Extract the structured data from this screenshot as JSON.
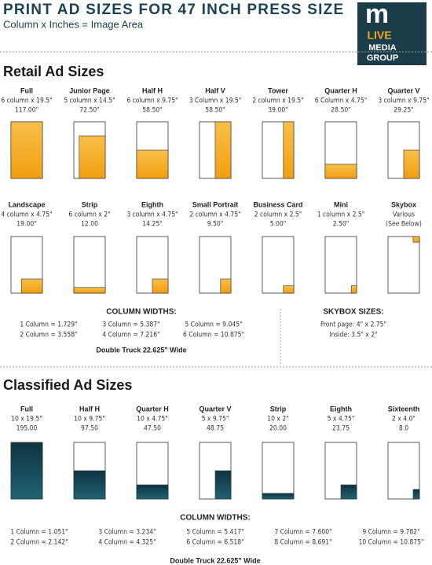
{
  "header": {
    "title": "PRINT AD SIZES FOR 47 INCH PRESS SIZE",
    "subtitle": "Column x Inches = Image Area",
    "logo": [
      "m",
      "LIVE",
      "MEDIA",
      "GROUP"
    ]
  },
  "retail": {
    "title": "Retail Ad Sizes",
    "ads": [
      {
        "name": "Full",
        "dims": "6 column x 19.5\"",
        "area": "117.00\""
      },
      {
        "name": "Junior Page",
        "dims": "5 column x 14.5\"",
        "area": "72.50\""
      },
      {
        "name": "Half H",
        "dims": "6 column x 9.75\"",
        "area": "58.50\""
      },
      {
        "name": "Half V",
        "dims": "3 Column x 19.5\"",
        "area": "58.50\""
      },
      {
        "name": "Tower",
        "dims": "2 column x 19.5\"",
        "area": "39.00\""
      },
      {
        "name": "Quarter H",
        "dims": "6 Column x 4.75\"",
        "area": "28.50\""
      },
      {
        "name": "Quarter V",
        "dims": "3 column x 9.75\"",
        "area": "29.25\""
      },
      {
        "name": "Landscape",
        "dims": "4 column x 4.75\"",
        "area": "19.00\""
      },
      {
        "name": "Strip",
        "dims": "6 column x 2\"",
        "area": "12.00"
      },
      {
        "name": "Eighth",
        "dims": "3 column x 4.75\"",
        "area": "14.25\""
      },
      {
        "name": "Small Portrait",
        "dims": "2 column x 4.75\"",
        "area": "9.50\""
      },
      {
        "name": "Business Card",
        "dims": "2 column x 2.5\"",
        "area": "5.00\""
      },
      {
        "name": "Mini",
        "dims": "1 column x 2.5\"",
        "area": "2.50\""
      },
      {
        "name": "Skybox",
        "dims": "Various",
        "area": "(See Below)"
      }
    ],
    "column_widths": {
      "title": "COLUMN WIDTHS:",
      "items": [
        "1 Column = 1.729\"",
        "2 Column = 3.558\"",
        "3 Column = 5.387\"",
        "4 Column = 7.216\"",
        "5 Column = 9.045\"",
        "6 Column = 10.875\""
      ],
      "note": "Double Truck 22.625\" Wide"
    },
    "skybox": {
      "title": "SKYBOX SIZES:",
      "items": [
        "Front page: 4\" x 2.75\"",
        "Inside: 3.5\" x 2\""
      ]
    }
  },
  "classified": {
    "title": "Classified Ad Sizes",
    "ads": [
      {
        "name": "Full",
        "dims": "10 x 19.5\"",
        "area": "195.00"
      },
      {
        "name": "Half H",
        "dims": "10 x 9.75\"",
        "area": "97.50"
      },
      {
        "name": "Quarter H",
        "dims": "10 x 4.75\"",
        "area": "47.50"
      },
      {
        "name": "Quarter V",
        "dims": "5 x 9.75\"",
        "area": "48.75"
      },
      {
        "name": "Strip",
        "dims": "10 x 2\"",
        "area": "20.00"
      },
      {
        "name": "Eighth",
        "dims": "5 x 4.75\"",
        "area": "23.75"
      },
      {
        "name": "Sixteenth",
        "dims": "2 x 4.0\"",
        "area": "8.0"
      }
    ],
    "column_widths": {
      "title": "COLUMN WIDTHS:",
      "items": [
        "1 Column = 1.051\"",
        "2 Column = 2.142\"",
        "3 Column = 3.234\"",
        "4 Column = 4.325\"",
        "5 Column = 5.417\"",
        "6 Column = 6.518\"",
        "7 Column = 7.600\"",
        "8 Column = 8.691\"",
        "9 Column = 9.782\"",
        "10 Column = 10.875\""
      ],
      "note": "Double Truck 22.625\" Wide"
    }
  }
}
